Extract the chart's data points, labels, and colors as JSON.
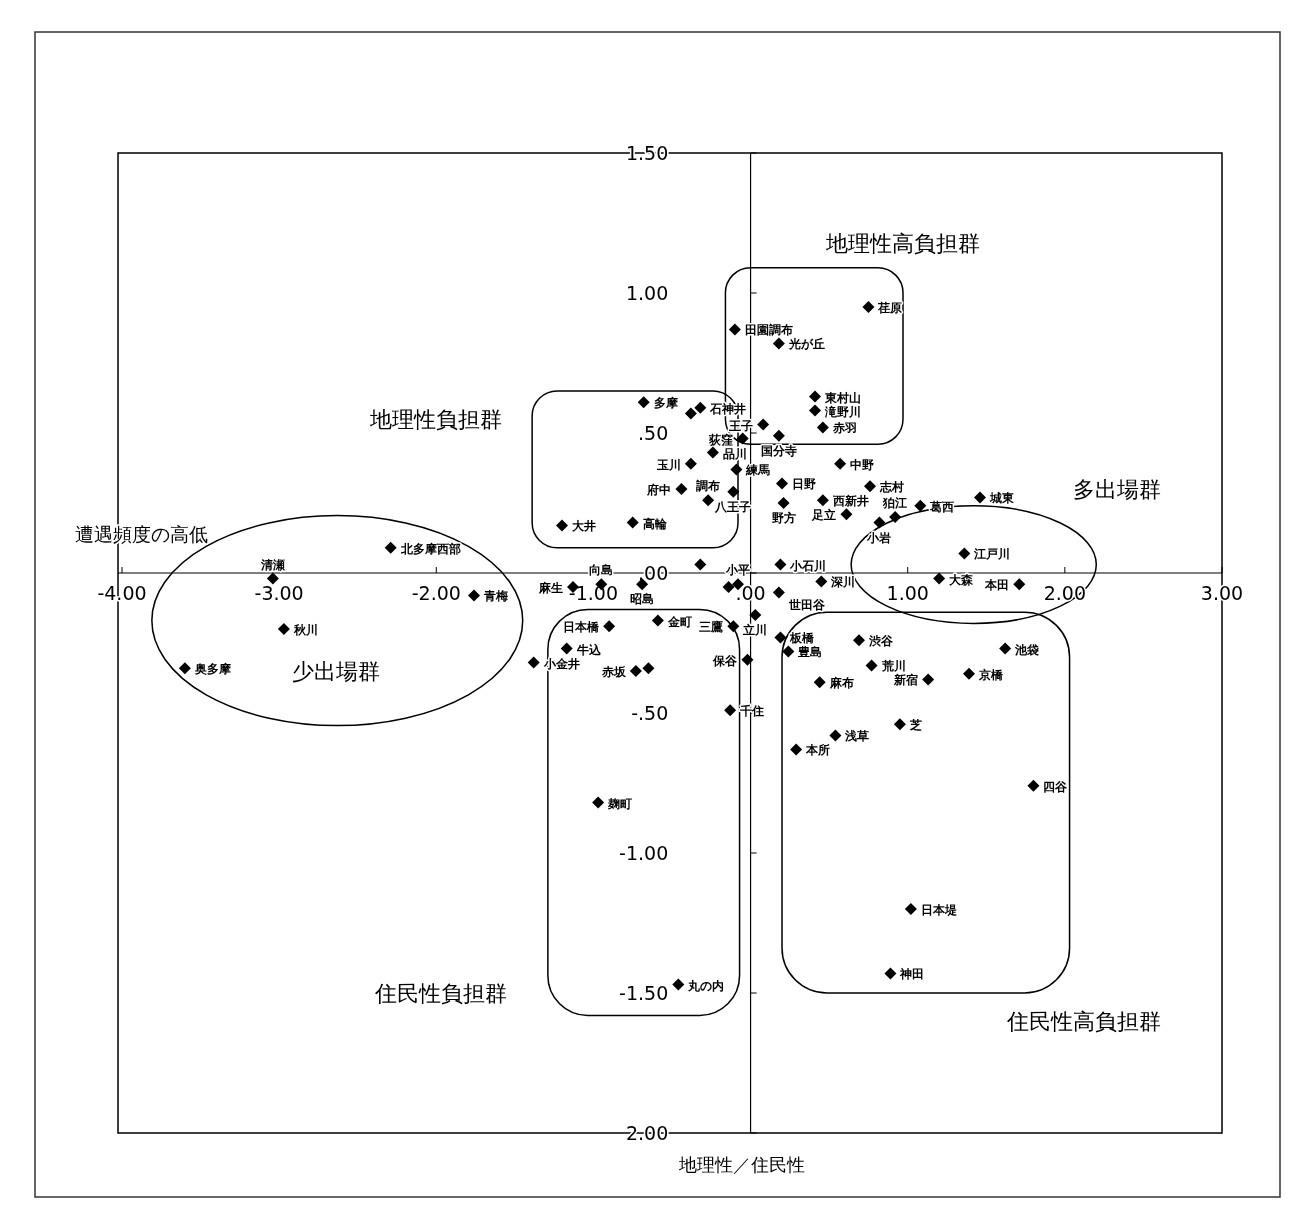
{
  "chart_data": {
    "type": "scatter",
    "xlabel": "地理性／住民性",
    "ylabel": "遭遇頻度の高低",
    "xlim": [
      -4,
      3
    ],
    "ylim": [
      -2,
      1.5
    ],
    "xticks": [
      {
        "value": -4,
        "label": "-4.00"
      },
      {
        "value": -3,
        "label": "-3.00"
      },
      {
        "value": -2,
        "label": "-2.00"
      },
      {
        "value": -1,
        "label": "-1.00"
      },
      {
        "value": 0,
        "label": ".00"
      },
      {
        "value": 1,
        "label": "1.00"
      },
      {
        "value": 2,
        "label": "2.00"
      },
      {
        "value": 3,
        "label": "3.00"
      }
    ],
    "yticks": [
      {
        "value": 1.5,
        "label": "1.50"
      },
      {
        "value": 1,
        "label": "1.00"
      },
      {
        "value": 0.5,
        "label": ".50"
      },
      {
        "value": 0,
        "label": ".00"
      },
      {
        "value": -0.5,
        "label": "-.50"
      },
      {
        "value": -1,
        "label": "-1.00"
      },
      {
        "value": -1.5,
        "label": "-1.50"
      },
      {
        "value": -2,
        "label": "2.00"
      }
    ],
    "marker": "diamond",
    "series": [
      {
        "color": "#000000",
        "x": [
          0.75,
          -0.1,
          0.18,
          0.41,
          0.41,
          0.46,
          0.08,
          0.18,
          -0.05,
          -0.68,
          -0.38,
          -0.32,
          -0.24,
          -0.38,
          -0.09,
          0.57,
          0.2,
          0.76,
          -0.44,
          -0.11,
          -0.27,
          0.21,
          0.46,
          0.61,
          0.82,
          0.92,
          1.08,
          1.46,
          1.36,
          -1.2,
          -0.75,
          -2.29,
          -3.04,
          -1.76,
          -2.97,
          -3.6,
          -1.38,
          -1.17,
          -0.32,
          0.19,
          -1.13,
          -0.95,
          -0.69,
          -0.08,
          -0.14,
          0.18,
          0.45,
          1.2,
          1.71,
          -0.9,
          -0.59,
          -0.11,
          0.03,
          0.19,
          0.24,
          -0.02,
          0.69,
          0.77,
          1.62,
          1.13,
          1.39,
          0.44,
          -0.73,
          -0.65,
          -0.13,
          0.95,
          0.54,
          0.29,
          1.8,
          -0.97,
          1.02,
          0.89,
          -0.46
        ],
        "values": [
          0.95,
          0.87,
          0.82,
          0.63,
          0.58,
          0.52,
          0.53,
          0.49,
          0.48,
          0.61,
          0.57,
          0.59,
          0.43,
          0.39,
          0.37,
          0.39,
          0.32,
          0.31,
          0.3,
          0.29,
          0.26,
          0.25,
          0.26,
          0.21,
          0.18,
          0.2,
          0.24,
          0.27,
          0.07,
          0.17,
          0.18,
          0.09,
          -0.02,
          -0.08,
          -0.2,
          -0.34,
          -0.32,
          -0.27,
          0.03,
          0.03,
          -0.05,
          -0.04,
          -0.04,
          -0.04,
          -0.05,
          -0.07,
          -0.03,
          -0.02,
          -0.04,
          -0.19,
          -0.17,
          -0.19,
          -0.15,
          -0.23,
          -0.28,
          -0.31,
          -0.24,
          -0.33,
          -0.27,
          -0.38,
          -0.36,
          -0.39,
          -0.35,
          -0.34,
          -0.49,
          -0.54,
          -0.58,
          -0.63,
          -0.76,
          -0.82,
          -1.2,
          -1.43,
          -1.47
        ],
        "value_labels": [
          "荏原",
          "田園調布",
          "光が丘",
          "東村山",
          "滝野川",
          "赤羽",
          "王子",
          "国分寺",
          "荻窪",
          "多摩",
          null,
          "石神井",
          "品川",
          "玉川",
          "練馬",
          "中野",
          "日野",
          "志村",
          "府中",
          "八王子",
          "調布",
          "野方",
          "西新井",
          "足立",
          "小岩",
          "狛江",
          "葛西",
          "城東",
          "江戸川",
          "大井",
          "高輪",
          "北多摩西部",
          "清瀬",
          "青梅",
          "秋川",
          "奥多摩",
          "小金井",
          "牛込",
          null,
          "小石川",
          "麻生",
          "向島",
          "昭島",
          "小平",
          null,
          "世田谷",
          "深川",
          "大森",
          "本田",
          "日本橋",
          "金町",
          "三鷹",
          "立川",
          "板橋",
          "豊島",
          "保谷",
          "渋谷",
          "荒川",
          "池袋",
          "新宿",
          "京橋",
          "麻布",
          "赤坂",
          null,
          "千住",
          "芝",
          "浅草",
          "本所",
          "四谷",
          "麹町",
          "日本堤",
          "神田",
          "丸の内"
        ]
      }
    ],
    "annotations": [
      "地理性高負担群",
      "地理性負担群",
      "多出場群",
      "少出場群",
      "住民性負担群",
      "住民性高負担群"
    ]
  }
}
